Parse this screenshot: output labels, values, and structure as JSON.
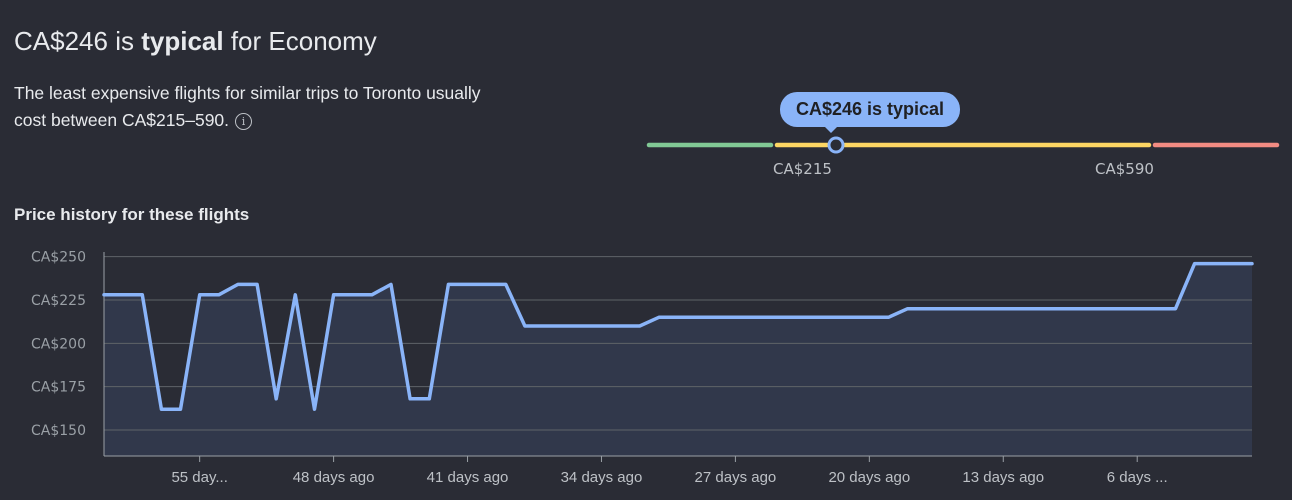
{
  "summary": {
    "headline_price": "CA$246",
    "headline_is": "is",
    "headline_strong": "typical",
    "headline_tail": "for Economy",
    "description": "The least expensive flights for similar trips to Toronto usually cost between CA$215–590.",
    "info_icon": "info-circle-icon"
  },
  "range_gauge": {
    "tooltip": "CA$246 is typical",
    "low_label": "CA$215",
    "high_label": "CA$590",
    "current_price": 246,
    "colors": {
      "low": "#81c995",
      "typical": "#fdd663",
      "high": "#f28b82",
      "marker": "#8ab4f8"
    }
  },
  "history": {
    "title": "Price history for these flights"
  },
  "chart_data": {
    "type": "area",
    "title": "Price history for these flights",
    "xlabel": "",
    "ylabel": "",
    "x_tick_labels": [
      "55 day...",
      "48 days ago",
      "41 days ago",
      "34 days ago",
      "27 days ago",
      "20 days ago",
      "13 days ago",
      "6 days ..."
    ],
    "x_tick_days_ago": [
      55,
      48,
      41,
      34,
      27,
      20,
      13,
      6
    ],
    "y_tick_labels": [
      "CA$250",
      "CA$225",
      "CA$200",
      "CA$175",
      "CA$150"
    ],
    "y_ticks": [
      250,
      225,
      200,
      175,
      150
    ],
    "ylim": [
      135,
      255
    ],
    "xlim_days_ago": [
      60,
      0
    ],
    "grid": true,
    "series": [
      {
        "days_ago": [
          60,
          58,
          57,
          56,
          55,
          54,
          53,
          52,
          51,
          50,
          49,
          48,
          47,
          46,
          45,
          44,
          43,
          42,
          41,
          40,
          39,
          38,
          37,
          36,
          35,
          34,
          33,
          32,
          31,
          30,
          29,
          28,
          27,
          26,
          25,
          24,
          23,
          22,
          21,
          20,
          19,
          18,
          17,
          16,
          15,
          14,
          13,
          12,
          11,
          10,
          9,
          8,
          7,
          6,
          5,
          4,
          3,
          2,
          1,
          0
        ],
        "prices": [
          228,
          228,
          162,
          162,
          228,
          228,
          234,
          234,
          168,
          228,
          162,
          228,
          228,
          228,
          234,
          168,
          168,
          234,
          234,
          234,
          234,
          210,
          210,
          210,
          210,
          210,
          210,
          210,
          215,
          215,
          215,
          215,
          215,
          215,
          215,
          215,
          215,
          215,
          215,
          215,
          215,
          220,
          220,
          220,
          220,
          220,
          220,
          220,
          220,
          220,
          220,
          220,
          220,
          220,
          220,
          220,
          246,
          246,
          246,
          246
        ],
        "color": "#8ab4f8"
      }
    ]
  }
}
